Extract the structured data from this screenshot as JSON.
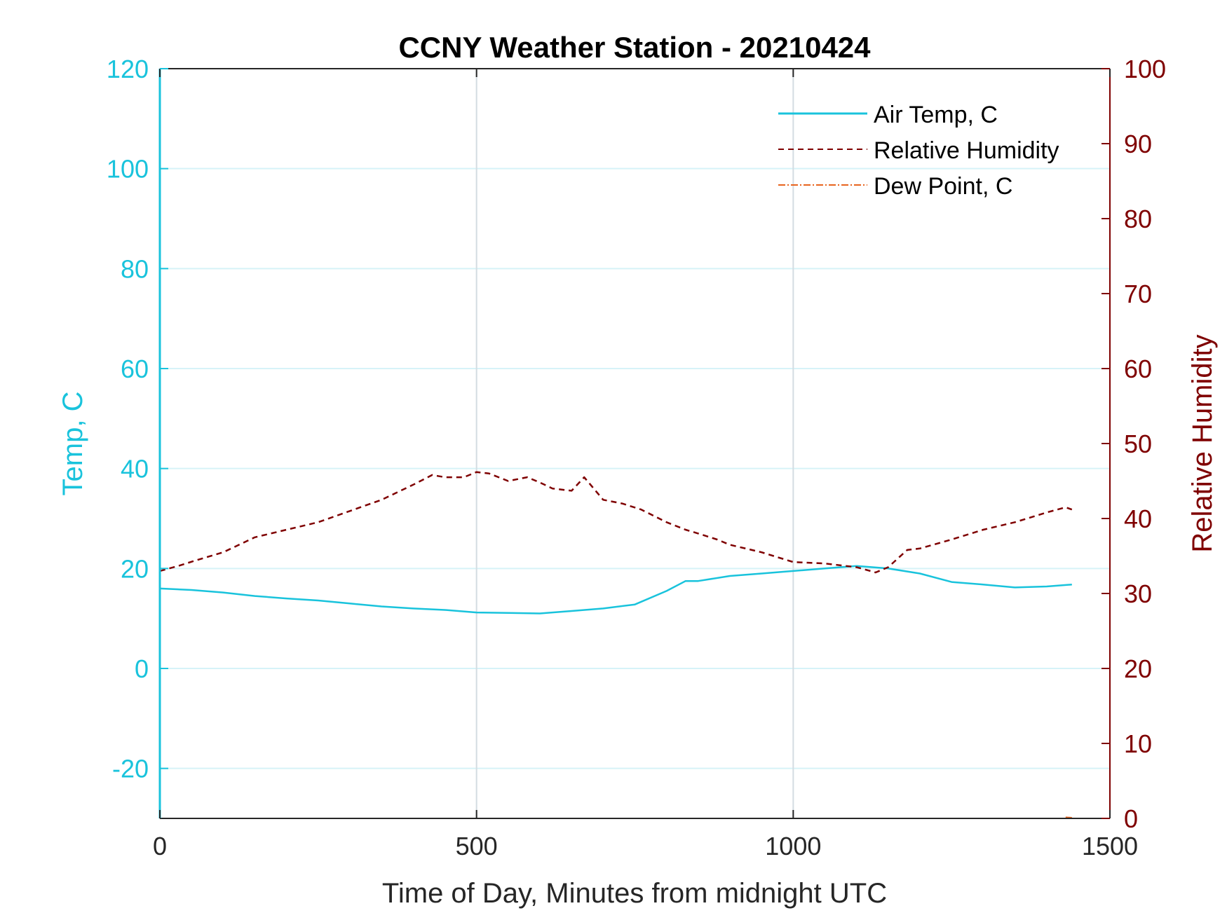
{
  "chart_data": {
    "type": "line",
    "title": "CCNY Weather Station - 20210424",
    "xlabel": "Time of Day, Minutes from midnight UTC",
    "ylabel_left": "Temp, C",
    "ylabel_right": "Relative Humidity",
    "xlim": [
      0,
      1500
    ],
    "ylim_left": [
      -30,
      120
    ],
    "ylim_right": [
      0,
      100
    ],
    "x_ticks": [
      0,
      500,
      1000,
      1500
    ],
    "x_tick_labels": [
      "0",
      "500",
      "1000",
      "1500"
    ],
    "y_left_ticks": [
      -20,
      0,
      20,
      40,
      60,
      80,
      100,
      120
    ],
    "y_left_tick_labels": [
      "-20",
      "0",
      "20",
      "40",
      "60",
      "80",
      "100",
      "120"
    ],
    "y_right_ticks": [
      0,
      10,
      20,
      30,
      40,
      50,
      60,
      70,
      80,
      90,
      100
    ],
    "y_right_tick_labels": [
      "0",
      "10",
      "20",
      "30",
      "40",
      "50",
      "60",
      "70",
      "80",
      "90",
      "100"
    ],
    "grid": true,
    "legend_position": "top-right",
    "colors": {
      "left_axis": "#19c3dc",
      "right_axis": "#7f0000",
      "air_temp": "#19c3dc",
      "humidity": "#7f0000",
      "dew_point": "#e8641e",
      "grid_h": "#d6f3f8",
      "grid_v": "#d4dce2"
    },
    "series": [
      {
        "name": "Air Temp, C",
        "axis": "left",
        "style": "solid",
        "x": [
          0,
          50,
          100,
          150,
          200,
          250,
          300,
          350,
          400,
          450,
          500,
          550,
          600,
          650,
          700,
          750,
          800,
          830,
          850,
          900,
          950,
          1000,
          1050,
          1100,
          1150,
          1200,
          1250,
          1300,
          1350,
          1400,
          1440
        ],
        "values": [
          16,
          15.7,
          15.2,
          14.5,
          14,
          13.6,
          13,
          12.4,
          12,
          11.7,
          11.2,
          11.1,
          11,
          11.5,
          12,
          12.8,
          15.5,
          17.5,
          17.5,
          18.5,
          19,
          19.5,
          20,
          20.5,
          20,
          19,
          17.3,
          16.8,
          16.2,
          16.4,
          16.8
        ]
      },
      {
        "name": "Relative Humidity",
        "axis": "right",
        "style": "dashed",
        "x": [
          0,
          30,
          60,
          100,
          150,
          200,
          250,
          300,
          350,
          400,
          430,
          450,
          480,
          500,
          520,
          550,
          580,
          600,
          620,
          650,
          670,
          700,
          730,
          760,
          800,
          830,
          850,
          880,
          900,
          950,
          1000,
          1050,
          1100,
          1130,
          1150,
          1180,
          1200,
          1250,
          1300,
          1350,
          1400,
          1430,
          1440
        ],
        "values": [
          33,
          33.7,
          34.5,
          35.5,
          37.5,
          38.5,
          39.5,
          41,
          42.5,
          44.5,
          45.8,
          45.5,
          45.5,
          46.2,
          46,
          45,
          45.5,
          44.8,
          44,
          43.7,
          45.5,
          42.5,
          42,
          41.2,
          39.5,
          38.5,
          38,
          37.2,
          36.5,
          35.5,
          34.2,
          34,
          33.5,
          32.8,
          33.5,
          35.8,
          36,
          37.2,
          38.5,
          39.5,
          40.8,
          41.5,
          41.2
        ]
      },
      {
        "name": "Dew Point, C",
        "axis": "left",
        "style": "dashdot",
        "x": [
          1430,
          1440
        ],
        "values": [
          -29.8,
          -29.9
        ]
      }
    ]
  }
}
